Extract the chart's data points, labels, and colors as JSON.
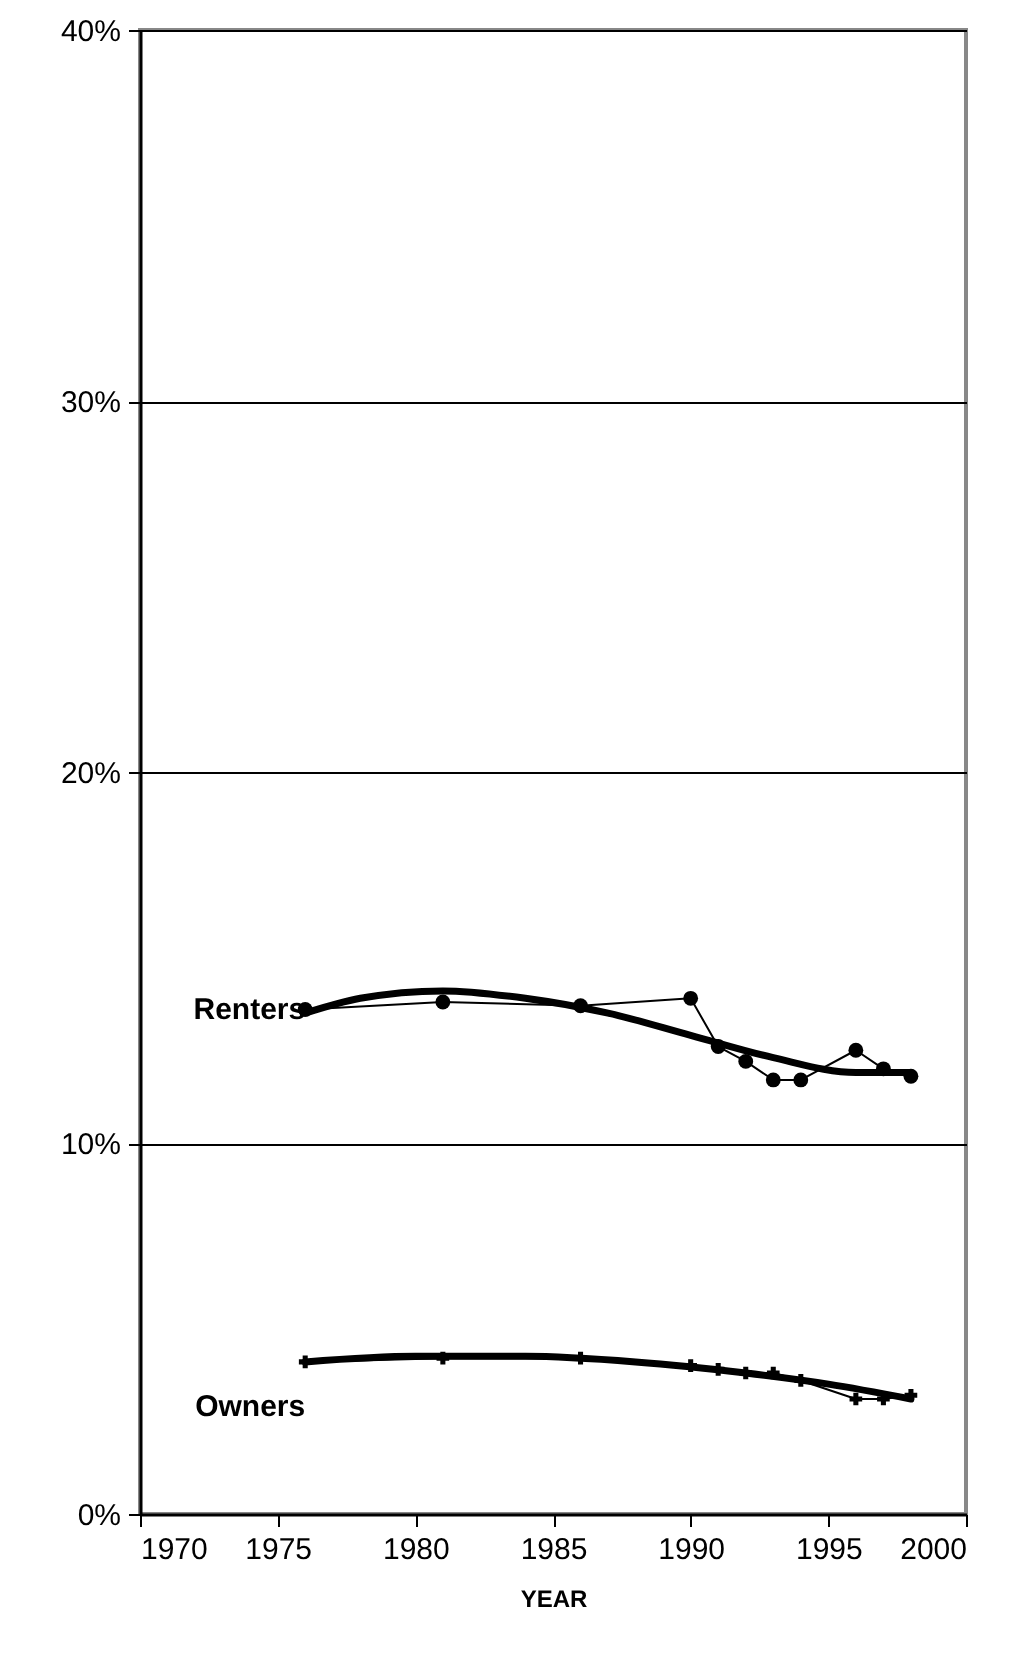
{
  "chart_data": {
    "type": "line",
    "xlabel": "YEAR",
    "xlim": [
      1970,
      2000
    ],
    "xticks": [
      1970,
      1975,
      1980,
      1985,
      1990,
      1995,
      2000
    ],
    "ylim": [
      0,
      40
    ],
    "yticks": [
      {
        "value": 0,
        "label": "0%"
      },
      {
        "value": 10,
        "label": "10%"
      },
      {
        "value": 20,
        "label": "20%"
      },
      {
        "value": 30,
        "label": "30%"
      },
      {
        "value": 40,
        "label": "40%"
      }
    ],
    "grid": "y",
    "series": [
      {
        "name": "Renters",
        "color": "#000000",
        "marker": "circle",
        "x": [
          1976,
          1981,
          1986,
          1990,
          1991,
          1992,
          1993,
          1994,
          1996,
          1997,
          1998
        ],
        "values": [
          13.6,
          13.8,
          13.7,
          13.9,
          12.6,
          12.2,
          11.7,
          11.7,
          12.5,
          12.0,
          11.8
        ]
      },
      {
        "name": "Owners",
        "color": "#000000",
        "marker": "cross",
        "x": [
          1976,
          1981,
          1986,
          1990,
          1991,
          1992,
          1993,
          1994,
          1996,
          1997,
          1998
        ],
        "values": [
          4.1,
          4.2,
          4.2,
          4.0,
          3.9,
          3.8,
          3.8,
          3.6,
          3.1,
          3.1,
          3.2
        ]
      },
      {
        "color": "#000000",
        "marker": "none",
        "x": [
          1976,
          1978,
          1981,
          1984,
          1987,
          1990,
          1993,
          1996,
          1998
        ],
        "values": [
          13.5,
          13.9,
          14.1,
          13.9,
          13.5,
          12.9,
          12.3,
          11.9,
          11.9
        ]
      },
      {
        "color": "#000000",
        "marker": "none",
        "x": [
          1976,
          1980,
          1984,
          1988,
          1992,
          1995,
          1998
        ],
        "values": [
          4.1,
          4.25,
          4.25,
          4.1,
          3.8,
          3.5,
          3.1
        ]
      }
    ]
  }
}
